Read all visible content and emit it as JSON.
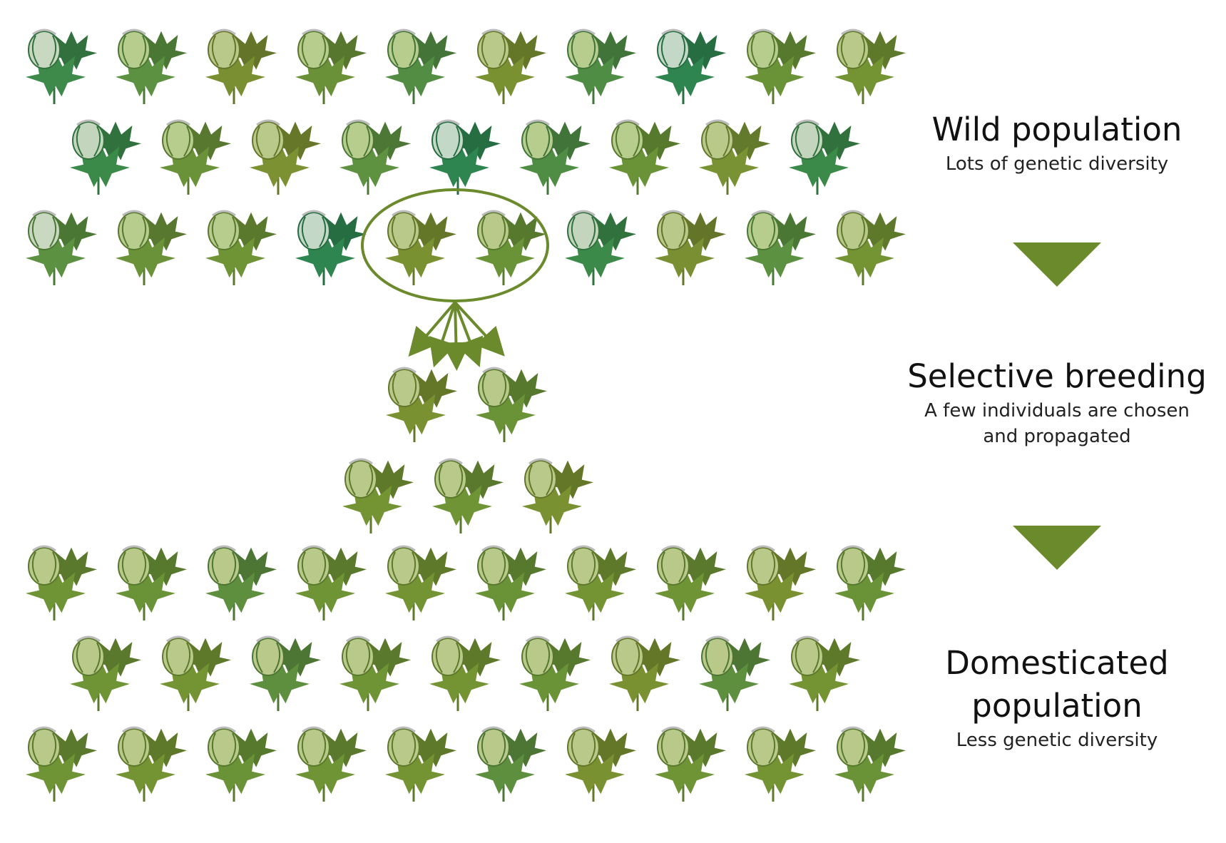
{
  "wild": {
    "title": "Wild population",
    "subtitle": "Lots of genetic diversity",
    "rows": [
      [
        {
          "leaf": "#3d8a4b",
          "boll": "#c9d8c0"
        },
        {
          "leaf": "#5b9140",
          "boll": "#b6cd8d"
        },
        {
          "leaf": "#7a8f32",
          "boll": "#b9c98a"
        },
        {
          "leaf": "#6a9138",
          "boll": "#b6cd8d"
        },
        {
          "leaf": "#538d44",
          "boll": "#b6cd8d"
        },
        {
          "leaf": "#7a9132",
          "boll": "#b9c98a"
        },
        {
          "leaf": "#4f8d45",
          "boll": "#b6cd8d"
        },
        {
          "leaf": "#2f8550",
          "boll": "#c3d8c6"
        },
        {
          "leaf": "#6a9338",
          "boll": "#b6cd8d"
        },
        {
          "leaf": "#749434",
          "boll": "#b9c98a"
        }
      ],
      [
        {
          "leaf": "#3b8a4a",
          "boll": "#c3d6bd"
        },
        {
          "leaf": "#6a9238",
          "boll": "#b6cd8d"
        },
        {
          "leaf": "#7c9132",
          "boll": "#b9c98a"
        },
        {
          "leaf": "#5e9140",
          "boll": "#b6cd8d"
        },
        {
          "leaf": "#2f8550",
          "boll": "#c3d8c6"
        },
        {
          "leaf": "#4f8d45",
          "boll": "#b6cd8d"
        },
        {
          "leaf": "#6a9338",
          "boll": "#b6cd8d"
        },
        {
          "leaf": "#799334",
          "boll": "#b9c98a"
        },
        {
          "leaf": "#3b8a4a",
          "boll": "#c3d6bd"
        }
      ],
      [
        {
          "leaf": "#5b9140",
          "boll": "#c9d8c0"
        },
        {
          "leaf": "#6a9238",
          "boll": "#b6cd8d"
        },
        {
          "leaf": "#6e9436",
          "boll": "#b6cd8d"
        },
        {
          "leaf": "#2f8550",
          "boll": "#c3d8c6"
        },
        {
          "leaf": "#7a9132",
          "boll": "#b9c98a"
        },
        {
          "leaf": "#6a9338",
          "boll": "#b9c98a"
        },
        {
          "leaf": "#3b8a4a",
          "boll": "#c3d6bd"
        },
        {
          "leaf": "#7a8f32",
          "boll": "#b9c98a"
        },
        {
          "leaf": "#5b9140",
          "boll": "#b6cd8d"
        },
        {
          "leaf": "#749434",
          "boll": "#b9c98a"
        }
      ]
    ]
  },
  "selective": {
    "title": "Selective breeding",
    "subtitle_line1": "A few individuals are chosen",
    "subtitle_line2": "and propagated",
    "rows": [
      [
        {
          "leaf": "#7a9132",
          "boll": "#b9c98a"
        },
        {
          "leaf": "#6a9338",
          "boll": "#b9c98a"
        }
      ],
      [
        {
          "leaf": "#749434",
          "boll": "#b9c98a"
        },
        {
          "leaf": "#6e9436",
          "boll": "#b9c98a"
        },
        {
          "leaf": "#7a9132",
          "boll": "#b9c98a"
        }
      ]
    ]
  },
  "domesticated": {
    "title_line1": "Domesticated",
    "title_line2": "population",
    "subtitle": "Less genetic diversity",
    "rows": [
      [
        {
          "leaf": "#6e9436",
          "boll": "#b9c98a"
        },
        {
          "leaf": "#6a9338",
          "boll": "#b9c98a"
        },
        {
          "leaf": "#5e8f3e",
          "boll": "#b9c98a"
        },
        {
          "leaf": "#6e9436",
          "boll": "#b9c98a"
        },
        {
          "leaf": "#749434",
          "boll": "#b9c98a"
        },
        {
          "leaf": "#6a9338",
          "boll": "#b9c98a"
        },
        {
          "leaf": "#749434",
          "boll": "#b9c98a"
        },
        {
          "leaf": "#6e9436",
          "boll": "#b9c98a"
        },
        {
          "leaf": "#7a9132",
          "boll": "#b9c98a"
        },
        {
          "leaf": "#6a9338",
          "boll": "#b9c98a"
        }
      ],
      [
        {
          "leaf": "#6e9436",
          "boll": "#b9c98a"
        },
        {
          "leaf": "#749434",
          "boll": "#b9c98a"
        },
        {
          "leaf": "#5e8f3e",
          "boll": "#b9c98a"
        },
        {
          "leaf": "#6e9436",
          "boll": "#b9c98a"
        },
        {
          "leaf": "#749434",
          "boll": "#b9c98a"
        },
        {
          "leaf": "#6a9338",
          "boll": "#b9c98a"
        },
        {
          "leaf": "#7a9132",
          "boll": "#b9c98a"
        },
        {
          "leaf": "#5e8f3e",
          "boll": "#b9c98a"
        },
        {
          "leaf": "#749434",
          "boll": "#b9c98a"
        }
      ],
      [
        {
          "leaf": "#6e9436",
          "boll": "#b9c98a"
        },
        {
          "leaf": "#749434",
          "boll": "#b9c98a"
        },
        {
          "leaf": "#6a9338",
          "boll": "#b9c98a"
        },
        {
          "leaf": "#6e9436",
          "boll": "#b9c98a"
        },
        {
          "leaf": "#749434",
          "boll": "#b9c98a"
        },
        {
          "leaf": "#5e8f3e",
          "boll": "#b9c98a"
        },
        {
          "leaf": "#7a9132",
          "boll": "#b9c98a"
        },
        {
          "leaf": "#6e9436",
          "boll": "#b9c98a"
        },
        {
          "leaf": "#749434",
          "boll": "#b9c98a"
        },
        {
          "leaf": "#6a9338",
          "boll": "#b9c98a"
        }
      ]
    ]
  },
  "colors": {
    "accent": "#6a8a2c",
    "text": "#111111"
  }
}
